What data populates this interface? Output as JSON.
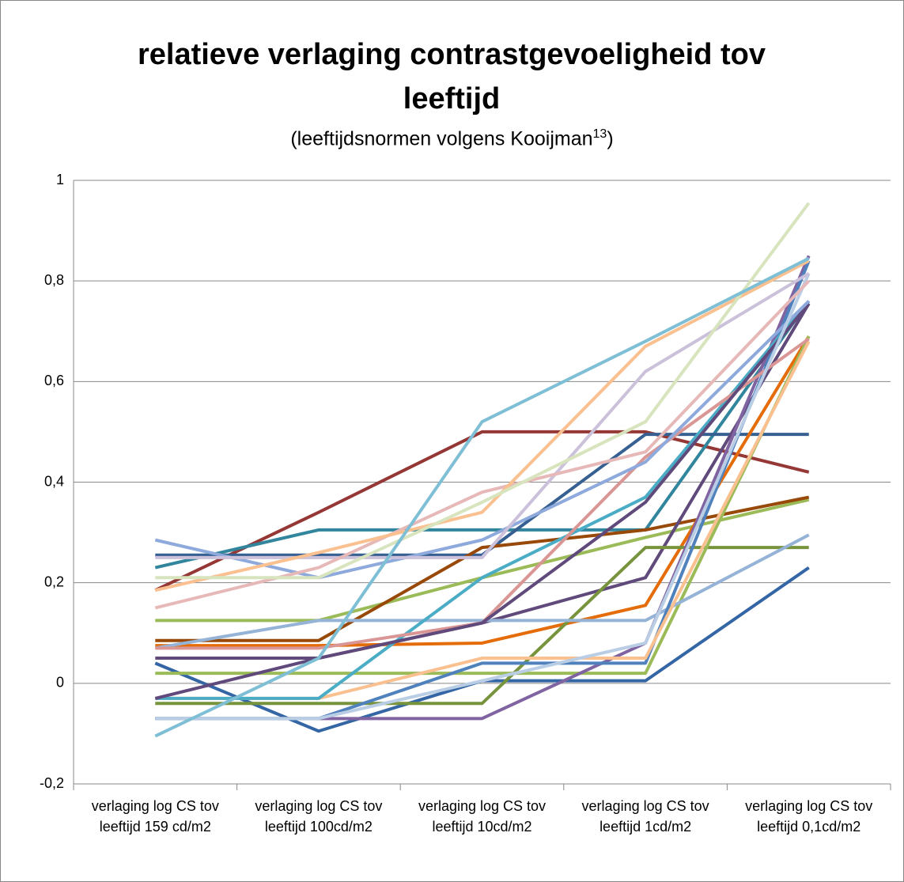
{
  "chart_data": {
    "type": "line",
    "title": "relatieve verlaging contrastgevoeligheid tov leeftijd",
    "subtitle": {
      "text": "(leeftijdsnormen volgens Kooijman",
      "superscript": "13",
      "end": ")"
    },
    "categories": [
      "verlaging log CS tov leeftijd 159 cd/m2",
      "verlaging log CS tov leeftijd 100cd/m2",
      "verlaging log CS tov leeftijd 10cd/m2",
      "verlaging log CS tov leeftijd 1cd/m2",
      "verlaging log CS tov leeftijd 0,1cd/m2"
    ],
    "ylim": [
      -0.2,
      1
    ],
    "yticks": [
      {
        "value": -0.2,
        "label": "-0,2"
      },
      0,
      {
        "value": 0.2,
        "label": "0,2"
      },
      {
        "value": 0.4,
        "label": "0,4"
      },
      {
        "value": 0.6,
        "label": "0,6"
      },
      {
        "value": 0.8,
        "label": "0,8"
      },
      1
    ],
    "grid": true,
    "series": [
      {
        "color": "#953735",
        "values": [
          0.185,
          0.34,
          0.5,
          0.5,
          0.42
        ]
      },
      {
        "color": "#31859c",
        "values": [
          0.23,
          0.305,
          0.305,
          0.305,
          0.76
        ]
      },
      {
        "color": "#376092",
        "values": [
          0.255,
          0.255,
          0.255,
          0.495,
          0.495
        ]
      },
      {
        "color": "#9bbb59",
        "values": [
          0.125,
          0.125,
          0.21,
          0.29,
          0.365
        ]
      },
      {
        "color": "#984807",
        "values": [
          0.085,
          0.085,
          0.27,
          0.305,
          0.37
        ]
      },
      {
        "color": "#e46c0a",
        "values": [
          0.075,
          0.075,
          0.08,
          0.155,
          0.69
        ]
      },
      {
        "color": "#604a7b",
        "values": [
          0.05,
          0.05,
          0.12,
          0.21,
          0.755
        ]
      },
      {
        "color": "#3465a4",
        "values": [
          0.04,
          -0.095,
          0.005,
          0.005,
          0.23
        ]
      },
      {
        "color": "#77933c",
        "values": [
          -0.04,
          -0.04,
          -0.04,
          0.27,
          0.27
        ]
      },
      {
        "color": "#9bbb59",
        "values": [
          0.02,
          0.02,
          0.02,
          0.02,
          0.69
        ]
      },
      {
        "color": "#8064a2",
        "values": [
          -0.07,
          -0.07,
          -0.07,
          0.08,
          0.85
        ]
      },
      {
        "color": "#95b3d7",
        "values": [
          0.07,
          0.125,
          0.125,
          0.125,
          0.295
        ]
      },
      {
        "color": "#4f81bd",
        "values": [
          -0.07,
          -0.07,
          0.04,
          0.04,
          0.84
        ]
      },
      {
        "color": "#fac090",
        "values": [
          -0.03,
          -0.03,
          0.05,
          0.05,
          0.68
        ]
      },
      {
        "color": "#4bacc6",
        "values": [
          -0.03,
          -0.03,
          0.21,
          0.37,
          0.76
        ]
      },
      {
        "color": "#d99694",
        "values": [
          0.07,
          0.07,
          0.12,
          0.45,
          0.685
        ]
      },
      {
        "color": "#604a7b",
        "values": [
          -0.03,
          0.05,
          0.12,
          0.36,
          0.755
        ]
      },
      {
        "color": "#8ea9db",
        "values": [
          0.285,
          0.21,
          0.285,
          0.44,
          0.76
        ]
      },
      {
        "color": "#b9cde5",
        "values": [
          -0.07,
          -0.07,
          0.005,
          0.08,
          0.815
        ]
      },
      {
        "color": "#ccc1da",
        "values": [
          0.25,
          0.25,
          0.25,
          0.62,
          0.815
        ]
      },
      {
        "color": "#e6b9b8",
        "values": [
          0.15,
          0.23,
          0.38,
          0.46,
          0.8
        ]
      },
      {
        "color": "#fac090",
        "values": [
          0.185,
          0.26,
          0.34,
          0.67,
          0.84
        ]
      },
      {
        "color": "#d7e4bd",
        "values": [
          0.21,
          0.21,
          0.36,
          0.52,
          0.955
        ]
      },
      {
        "color": "#7fbfd6",
        "values": [
          -0.105,
          0.05,
          0.52,
          0.68,
          0.845
        ]
      }
    ]
  }
}
